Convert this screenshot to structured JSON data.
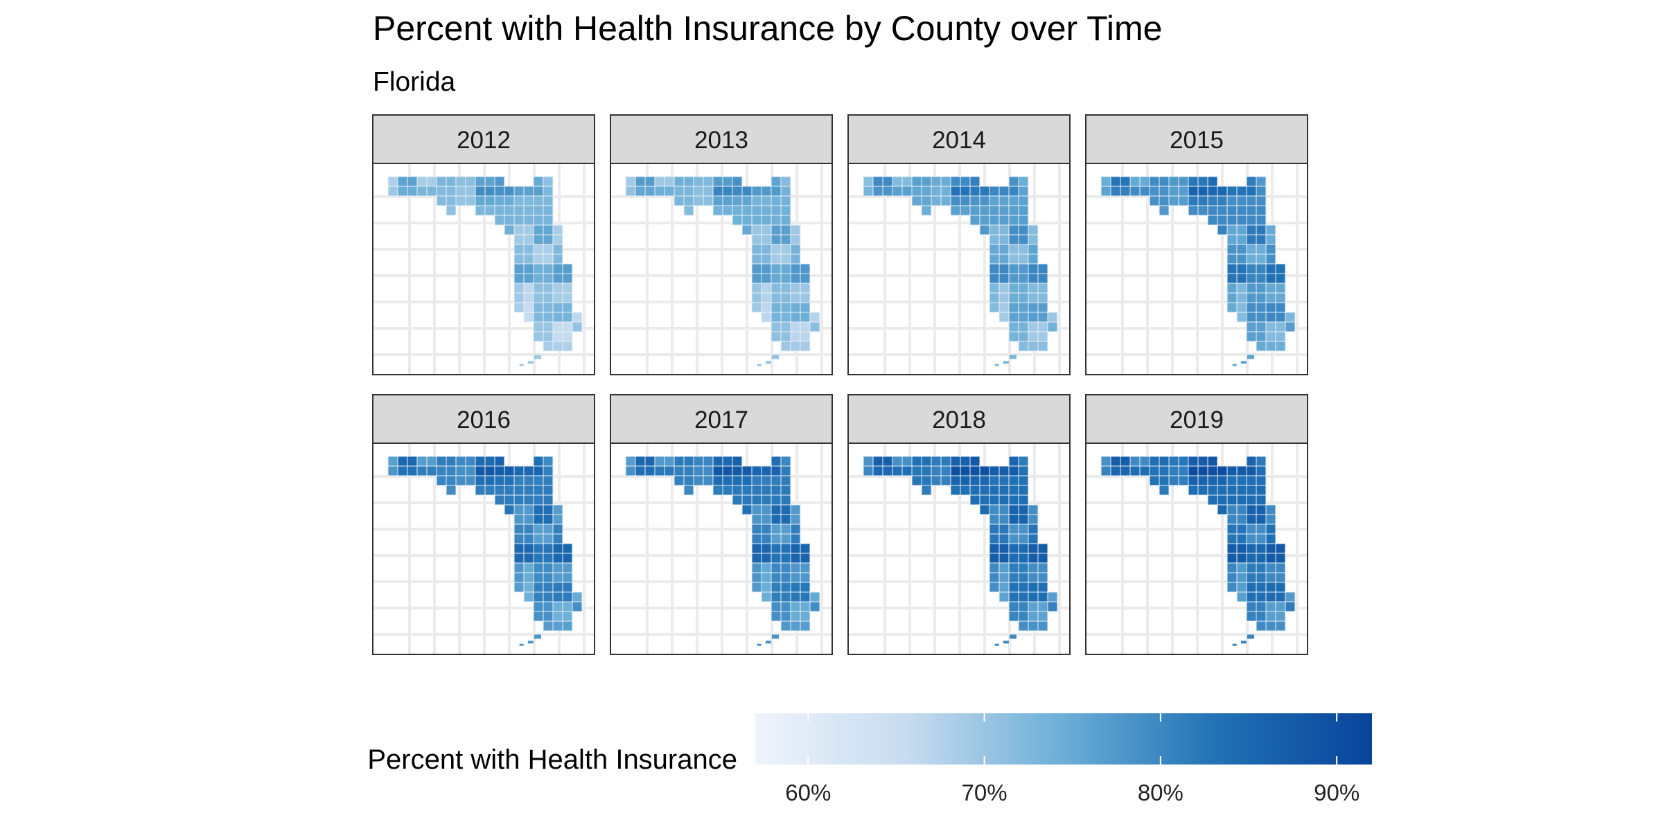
{
  "chart_data": {
    "type": "choropleth-map",
    "title": "Percent with Health Insurance by County over Time",
    "subtitle": "Florida",
    "facet_variable": "year",
    "panels": [
      {
        "year": "2012",
        "base_pct": 72.5,
        "overall_tone": "lightest"
      },
      {
        "year": "2013",
        "base_pct": 73.5,
        "overall_tone": "light"
      },
      {
        "year": "2014",
        "base_pct": 76.0,
        "overall_tone": "light-medium"
      },
      {
        "year": "2015",
        "base_pct": 79.0,
        "overall_tone": "medium"
      },
      {
        "year": "2016",
        "base_pct": 81.0,
        "overall_tone": "medium"
      },
      {
        "year": "2017",
        "base_pct": 81.5,
        "overall_tone": "medium-dark"
      },
      {
        "year": "2018",
        "base_pct": 83.0,
        "overall_tone": "dark"
      },
      {
        "year": "2019",
        "base_pct": 83.5,
        "overall_tone": "darkest"
      }
    ],
    "legend": {
      "title": "Percent with Health Insurance",
      "position": "bottom",
      "min": 57,
      "max": 92,
      "breaks": [
        60,
        70,
        80,
        90
      ],
      "break_labels": [
        "60%",
        "70%",
        "80%",
        "90%"
      ],
      "colors": [
        "#eef4fb",
        "#c6dbef",
        "#6baed6",
        "#2171b5",
        "#08449a"
      ]
    },
    "grid": true,
    "county_border_color": "#e8f0f8"
  }
}
